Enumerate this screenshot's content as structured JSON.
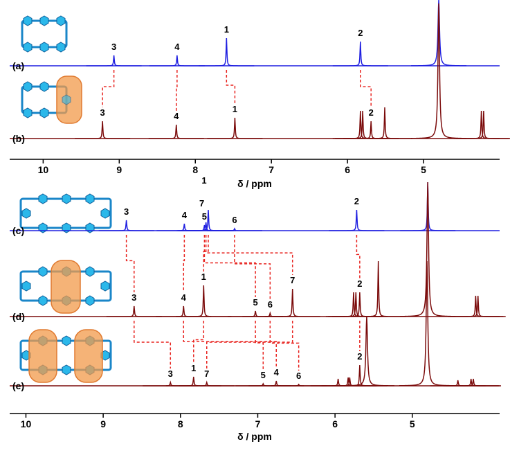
{
  "chart_data": [
    {
      "type": "nmr",
      "xlabel": "δ / ppm",
      "xlim": [
        10.44,
        4.0
      ],
      "xticks": [
        10,
        9,
        8,
        7,
        6,
        5
      ],
      "series": [
        {
          "name": "(a)",
          "color": "#1f1fe0",
          "x": [
            9.07,
            8.24,
            7.59,
            5.83,
            4.8
          ],
          "values": [
            15,
            15,
            40,
            35,
            95
          ],
          "peak_labels": [
            "3",
            "4",
            "1",
            "2",
            null
          ]
        },
        {
          "name": "(b)",
          "color": "#7b0b0b",
          "x": [
            9.22,
            8.25,
            7.48,
            5.83,
            5.8,
            5.69,
            5.51,
            4.8,
            4.24,
            4.21
          ],
          "values": [
            25,
            20,
            30,
            40,
            40,
            25,
            45,
            195,
            40,
            40
          ],
          "peak_labels": [
            "3",
            "4",
            "1",
            null,
            null,
            "2",
            null,
            null,
            null,
            null
          ]
        }
      ]
    },
    {
      "type": "nmr",
      "xlabel": "δ / ppm",
      "xlim": [
        10.21,
        3.87
      ],
      "xticks": [
        10,
        9,
        8,
        7,
        6,
        5
      ],
      "series": [
        {
          "name": "(c)",
          "color": "#1f1fe0",
          "x": [
            8.7,
            7.95,
            7.69,
            7.67,
            7.64,
            7.3,
            5.72,
            4.8
          ],
          "values": [
            15,
            10,
            8,
            12,
            30,
            3,
            30,
            70
          ],
          "peak_labels": [
            "3",
            "4",
            "5",
            "7",
            "1",
            "6",
            "2",
            null
          ]
        },
        {
          "name": "(d)",
          "color": "#7b0b0b",
          "x": [
            8.6,
            7.96,
            7.7,
            7.03,
            6.84,
            6.55,
            5.76,
            5.73,
            5.68,
            5.44,
            4.8,
            4.18,
            4.15
          ],
          "values": [
            15,
            15,
            45,
            8,
            5,
            40,
            35,
            35,
            35,
            80,
            194,
            30,
            30
          ],
          "peak_labels": [
            "3",
            "4",
            "1",
            "5",
            "6",
            "7",
            null,
            null,
            "2",
            null,
            null,
            null,
            null
          ]
        },
        {
          "name": "(e)",
          "color": "#7b0b0b",
          "x": [
            8.13,
            7.83,
            7.66,
            6.93,
            6.76,
            6.47,
            5.96,
            5.83,
            5.81,
            5.68,
            5.59,
            4.81,
            4.41,
            4.24,
            4.21
          ],
          "values": [
            5,
            13,
            5,
            3,
            7,
            2,
            10,
            12,
            12,
            30,
            100,
            180,
            8,
            10,
            10
          ],
          "peak_labels": [
            "3",
            "1",
            "7",
            "5",
            "4",
            "6",
            null,
            null,
            null,
            "2",
            null,
            null,
            null,
            null,
            null
          ]
        }
      ]
    }
  ]
}
